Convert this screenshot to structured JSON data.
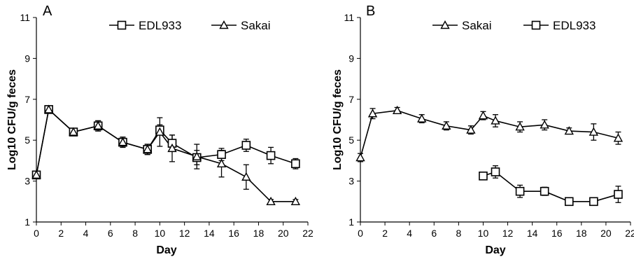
{
  "chart_data": [
    {
      "type": "line",
      "panel_label": "A",
      "xlabel": "Day",
      "ylabel": "Log10 CFU/g feces",
      "xlim": [
        0,
        22
      ],
      "ylim": [
        1,
        11
      ],
      "xticks": [
        0,
        2,
        4,
        6,
        8,
        10,
        12,
        14,
        16,
        18,
        20,
        22
      ],
      "yticks": [
        1,
        3,
        5,
        7,
        9,
        11
      ],
      "grid": false,
      "legend_position": "top",
      "series": [
        {
          "name": "EDL933",
          "marker": "square",
          "x": [
            0,
            1,
            3,
            5,
            7,
            9,
            10,
            11,
            13,
            15,
            17,
            19,
            21
          ],
          "y": [
            3.3,
            6.5,
            5.4,
            5.7,
            4.9,
            4.55,
            5.5,
            4.85,
            4.15,
            4.3,
            4.75,
            4.25,
            3.85
          ],
          "err": [
            0,
            0.1,
            0.1,
            0.25,
            0.25,
            0.25,
            0.25,
            0.4,
            0.35,
            0.3,
            0.3,
            0.4,
            0.25
          ]
        },
        {
          "name": "Sakai",
          "marker": "triangle",
          "x": [
            0,
            1,
            3,
            5,
            7,
            9,
            10,
            11,
            13,
            15,
            17,
            19,
            21
          ],
          "y": [
            3.3,
            6.5,
            5.4,
            5.7,
            4.9,
            4.55,
            5.4,
            4.6,
            4.2,
            3.85,
            3.2,
            2.0,
            2.0
          ],
          "err": [
            0,
            0.1,
            0.1,
            0.25,
            0.25,
            0.25,
            0.7,
            0.65,
            0.6,
            0.65,
            0.6,
            0.1,
            0.1
          ]
        }
      ]
    },
    {
      "type": "line",
      "panel_label": "B",
      "xlabel": "Day",
      "ylabel": "Log10 CFU/g feces",
      "xlim": [
        0,
        22
      ],
      "ylim": [
        1,
        11
      ],
      "xticks": [
        0,
        2,
        4,
        6,
        8,
        10,
        12,
        14,
        16,
        18,
        20,
        22
      ],
      "yticks": [
        1,
        3,
        5,
        7,
        9,
        11
      ],
      "grid": false,
      "legend_position": "top",
      "series": [
        {
          "name": "Sakai",
          "marker": "triangle",
          "x": [
            0,
            1,
            3,
            5,
            7,
            9,
            10,
            11,
            13,
            15,
            17,
            19,
            21
          ],
          "y": [
            4.15,
            6.3,
            6.45,
            6.05,
            5.7,
            5.5,
            6.2,
            5.95,
            5.65,
            5.75,
            5.45,
            5.4,
            5.1
          ],
          "err": [
            0.2,
            0.25,
            0.15,
            0.2,
            0.2,
            0.2,
            0.2,
            0.3,
            0.25,
            0.25,
            0.15,
            0.4,
            0.3
          ]
        },
        {
          "name": "EDL933",
          "marker": "square",
          "x": [
            10,
            11,
            13,
            15,
            17,
            19,
            21
          ],
          "y": [
            3.25,
            3.45,
            2.5,
            2.5,
            2.0,
            2.0,
            2.35
          ],
          "err": [
            0.1,
            0.3,
            0.3,
            0.2,
            0.05,
            0.05,
            0.4
          ]
        }
      ]
    }
  ]
}
